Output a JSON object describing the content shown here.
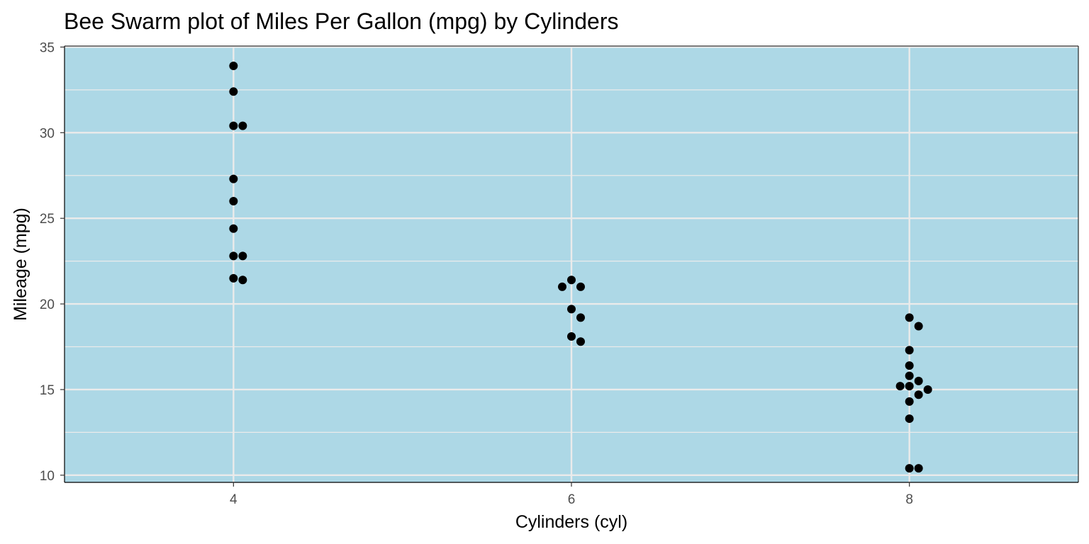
{
  "chart_data": {
    "type": "scatter",
    "subtype": "beeswarm",
    "title": "Bee Swarm plot of Miles Per Gallon (mpg) by Cylinders",
    "xlabel": "Cylinders (cyl)",
    "ylabel": "Mileage (mpg)",
    "xlim": [
      3,
      9
    ],
    "ylim": [
      10,
      35
    ],
    "x_ticks": [
      4,
      6,
      8
    ],
    "y_ticks": [
      10,
      15,
      20,
      25,
      30,
      35
    ],
    "grid": true,
    "panel_background": "#add8e6",
    "grid_color": "#ebebeb",
    "point_color": "#000000",
    "series": [
      {
        "group": 4,
        "values": [
          33.9,
          32.4,
          30.4,
          30.4,
          27.3,
          26.0,
          24.4,
          22.8,
          22.8,
          21.5,
          21.4
        ]
      },
      {
        "group": 6,
        "values": [
          21.4,
          21.0,
          21.0,
          19.7,
          19.2,
          18.1,
          17.8
        ]
      },
      {
        "group": 8,
        "values": [
          19.2,
          18.7,
          17.3,
          16.4,
          15.8,
          15.5,
          15.2,
          15.2,
          15.0,
          14.7,
          14.3,
          13.3,
          10.4,
          10.4
        ]
      }
    ]
  }
}
